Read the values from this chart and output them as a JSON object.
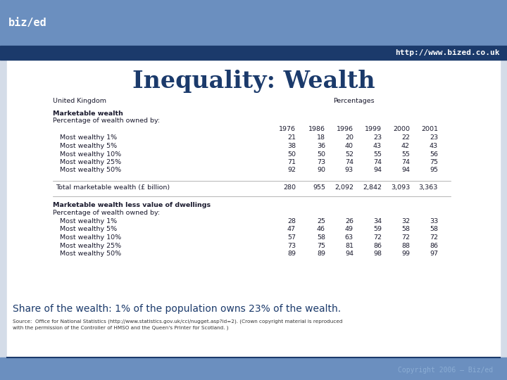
{
  "title": "Inequality: Wealth",
  "url": "http://www.bized.co.uk",
  "header_bg_light": "#6B8FBF",
  "header_bg_dark": "#1B3A6B",
  "main_bg": "#D4DCE8",
  "body_bg": "#FFFFFF",
  "text_color_dark": "#1B3A6B",
  "text_color_body": "#1a1a2e",
  "header_label1": "United Kingdom",
  "header_label2": "Percentages",
  "section1_title": "Marketable wealth",
  "section1_sub": "Percentage of wealth owned by:",
  "years": [
    "1976",
    "1986",
    "1996",
    "1999",
    "2000",
    "2001"
  ],
  "rows1": [
    [
      "Most wealthy 1%",
      "21",
      "18",
      "20",
      "23",
      "22",
      "23"
    ],
    [
      "Most wealthy 5%",
      "38",
      "36",
      "40",
      "43",
      "42",
      "43"
    ],
    [
      "Most wealthy 10%",
      "50",
      "50",
      "52",
      "55",
      "55",
      "56"
    ],
    [
      "Most wealthy 25%",
      "71",
      "73",
      "74",
      "74",
      "74",
      "75"
    ],
    [
      "Most wealthy 50%",
      "92",
      "90",
      "93",
      "94",
      "94",
      "95"
    ]
  ],
  "total_row": [
    "Total marketable wealth (£ billion)",
    "280",
    "955",
    "2,092",
    "2,842",
    "3,093",
    "3,363"
  ],
  "section2_title": "Marketable wealth less value of dwellings",
  "section2_sub": "Percentage of wealth owned by:",
  "rows2": [
    [
      "Most wealthy 1%",
      "28",
      "25",
      "26",
      "34",
      "32",
      "33"
    ],
    [
      "Most wealthy 5%",
      "47",
      "46",
      "49",
      "59",
      "58",
      "58"
    ],
    [
      "Most wealthy 10%",
      "57",
      "58",
      "63",
      "72",
      "72",
      "72"
    ],
    [
      "Most wealthy 25%",
      "73",
      "75",
      "81",
      "86",
      "88",
      "86"
    ],
    [
      "Most wealthy 50%",
      "89",
      "89",
      "94",
      "98",
      "99",
      "97"
    ]
  ],
  "highlight_text": "Share of the wealth: 1% of the population owns 23% of the wealth.",
  "source_line1": "Source:  Office for National Statistics (http://www.statistics.gov.uk/cci/nugget.asp?id=2). (Crown copyright material is reproduced",
  "source_line2": "with the permission of the Controller of HMSO and the Queen's Printer for Scotland. )",
  "copyright_text": "Copyright 2006 – Biz/ed",
  "logo_text": "biz/ed"
}
